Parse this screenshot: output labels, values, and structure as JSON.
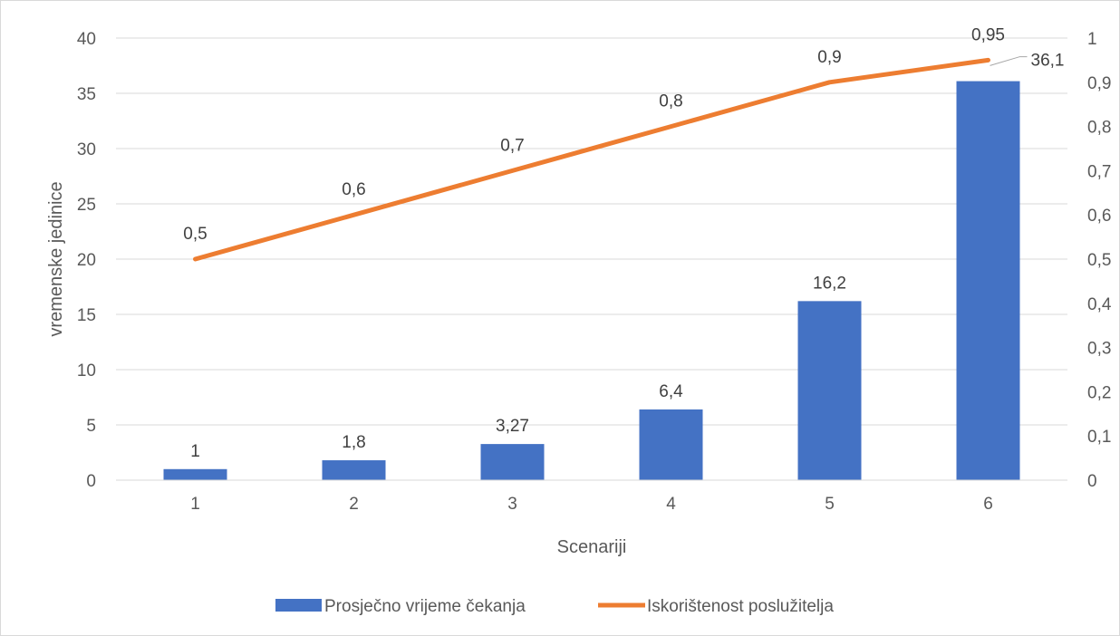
{
  "chart_data": {
    "type": "bar",
    "categories": [
      "1",
      "2",
      "3",
      "4",
      "5",
      "6"
    ],
    "xlabel": "Scenariji",
    "ylabel": "vremenske jedinice",
    "ylim": [
      0,
      40
    ],
    "yticks": [
      "0",
      "5",
      "10",
      "15",
      "20",
      "25",
      "30",
      "35",
      "40"
    ],
    "y2lim": [
      0,
      1
    ],
    "y2ticks": [
      "0",
      "0,1",
      "0,2",
      "0,3",
      "0,4",
      "0,5",
      "0,6",
      "0,7",
      "0,8",
      "0,9",
      "1"
    ],
    "grid": true,
    "legend_position": "bottom",
    "series": [
      {
        "name": "Prosječno vrijeme čekanja",
        "type": "bar",
        "axis": "left",
        "color": "#4472c4",
        "values": [
          1,
          1.8,
          3.27,
          6.4,
          16.2,
          36.1
        ],
        "labels": [
          "1",
          "1,8",
          "3,27",
          "6,4",
          "16,2",
          "36,1"
        ]
      },
      {
        "name": "Iskorištenost poslužitelja",
        "type": "line",
        "axis": "right",
        "color": "#ed7d31",
        "values": [
          0.5,
          0.6,
          0.7,
          0.8,
          0.9,
          0.95
        ],
        "labels": [
          "0,5",
          "0,6",
          "0,7",
          "0,8",
          "0,9",
          "0,95"
        ]
      }
    ]
  }
}
